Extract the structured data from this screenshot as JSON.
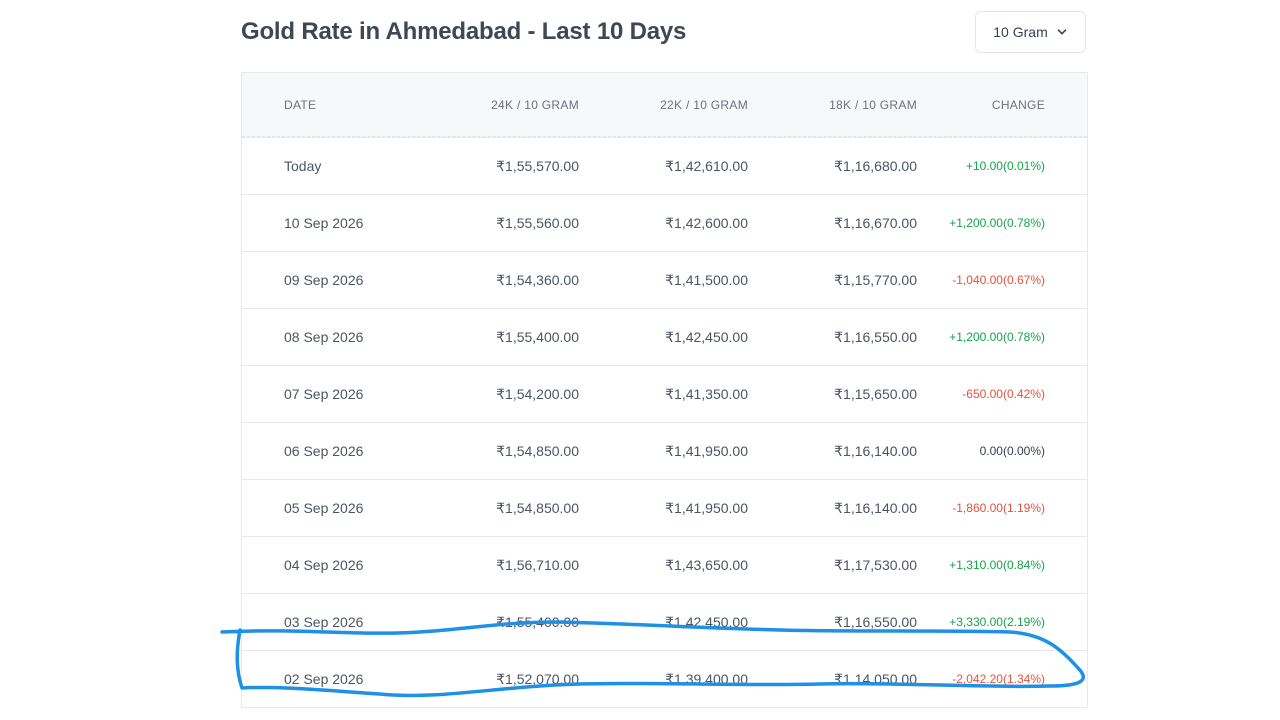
{
  "header": {
    "title": "Gold Rate in Ahmedabad - Last 10 Days",
    "unit_selector": {
      "selected": "10 Gram"
    }
  },
  "table": {
    "columns": [
      "DATE",
      "24K / 10 GRAM",
      "22K / 10 GRAM",
      "18K / 10 GRAM",
      "CHANGE"
    ],
    "rows": [
      {
        "date": "Today",
        "k24": "₹1,55,570.00",
        "k22": "₹1,42,610.00",
        "k18": "₹1,16,680.00",
        "change": "+10.00(0.01%)",
        "trend": "up"
      },
      {
        "date": "10 Sep 2026",
        "k24": "₹1,55,560.00",
        "k22": "₹1,42,600.00",
        "k18": "₹1,16,670.00",
        "change": "+1,200.00(0.78%)",
        "trend": "up"
      },
      {
        "date": "09 Sep 2026",
        "k24": "₹1,54,360.00",
        "k22": "₹1,41,500.00",
        "k18": "₹1,15,770.00",
        "change": "-1,040.00(0.67%)",
        "trend": "down"
      },
      {
        "date": "08 Sep 2026",
        "k24": "₹1,55,400.00",
        "k22": "₹1,42,450.00",
        "k18": "₹1,16,550.00",
        "change": "+1,200.00(0.78%)",
        "trend": "up"
      },
      {
        "date": "07 Sep 2026",
        "k24": "₹1,54,200.00",
        "k22": "₹1,41,350.00",
        "k18": "₹1,15,650.00",
        "change": "-650.00(0.42%)",
        "trend": "down"
      },
      {
        "date": "06 Sep 2026",
        "k24": "₹1,54,850.00",
        "k22": "₹1,41,950.00",
        "k18": "₹1,16,140.00",
        "change": "0.00(0.00%)",
        "trend": "flat"
      },
      {
        "date": "05 Sep 2026",
        "k24": "₹1,54,850.00",
        "k22": "₹1,41,950.00",
        "k18": "₹1,16,140.00",
        "change": "-1,860.00(1.19%)",
        "trend": "down"
      },
      {
        "date": "04 Sep 2026",
        "k24": "₹1,56,710.00",
        "k22": "₹1,43,650.00",
        "k18": "₹1,17,530.00",
        "change": "+1,310.00(0.84%)",
        "trend": "up"
      },
      {
        "date": "03 Sep 2026",
        "k24": "₹1,55,400.00",
        "k22": "₹1,42,450.00",
        "k18": "₹1,16,550.00",
        "change": "+3,330.00(2.19%)",
        "trend": "up"
      },
      {
        "date": "02 Sep 2026",
        "k24": "₹1,52,070.00",
        "k22": "₹1,39,400.00",
        "k18": "₹1,14,050.00",
        "change": "-2,042.20(1.34%)",
        "trend": "down"
      }
    ]
  },
  "colors": {
    "up": "#16a34a",
    "down": "#e5533d",
    "flat": "#374151",
    "annotation": "#1e90e6"
  },
  "icons": {
    "unit_selector": "chevron-down-icon"
  }
}
